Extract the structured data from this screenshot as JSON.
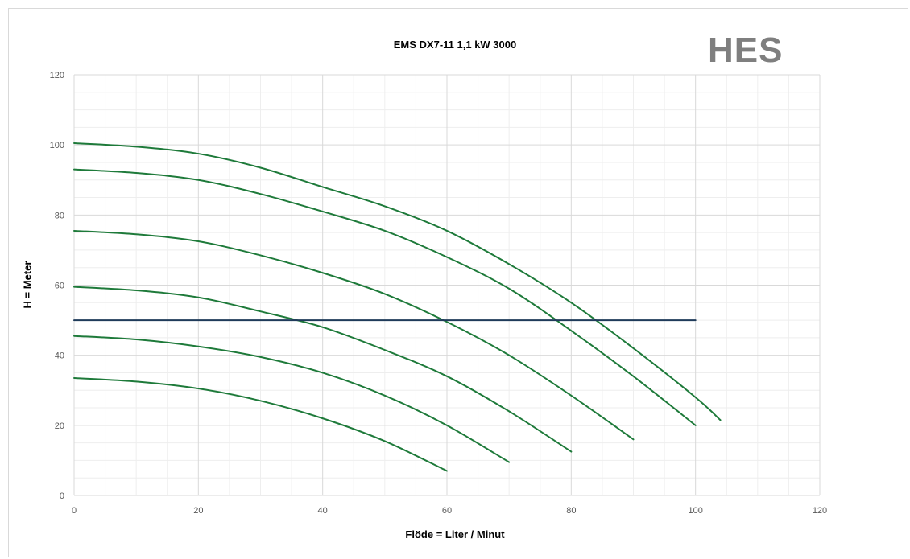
{
  "logo_text": "HES",
  "chart_data": {
    "type": "line",
    "title": "EMS DX7-11 1,1 kW 3000",
    "xlabel": "Flöde = Liter / Minut",
    "ylabel": "H = Meter",
    "xlim": [
      0,
      120
    ],
    "ylim": [
      0,
      120
    ],
    "xticks": [
      0,
      20,
      40,
      60,
      80,
      100,
      120
    ],
    "yticks": [
      0,
      20,
      40,
      60,
      80,
      100,
      120
    ],
    "grid": true,
    "colors": {
      "curve": "#1e7a3a",
      "reference": "#1f3b5a",
      "major_grid": "#d9d9d9",
      "minor_grid": "#eeeeee"
    },
    "series": [
      {
        "x": [
          0,
          10,
          20,
          30,
          40,
          50,
          60,
          70,
          80,
          90,
          100,
          104
        ],
        "y": [
          100.5,
          99.5,
          97.5,
          93.5,
          88,
          82.5,
          75.5,
          66,
          55,
          42,
          28,
          21.5
        ]
      },
      {
        "x": [
          0,
          10,
          20,
          30,
          40,
          50,
          60,
          70,
          80,
          90,
          100
        ],
        "y": [
          93,
          92,
          90,
          86,
          81,
          75.5,
          68,
          59,
          47,
          34,
          20
        ]
      },
      {
        "x": [
          0,
          10,
          20,
          30,
          40,
          50,
          60,
          70,
          80,
          90
        ],
        "y": [
          75.5,
          74.5,
          72.5,
          68.5,
          63.5,
          57.5,
          49.5,
          40,
          28.5,
          16
        ]
      },
      {
        "x": [
          0,
          10,
          20,
          30,
          40,
          50,
          60,
          70,
          80
        ],
        "y": [
          59.5,
          58.5,
          56.5,
          52.5,
          48,
          41.5,
          34,
          24,
          12.5
        ]
      },
      {
        "x": [
          0,
          10,
          20,
          30,
          40,
          50,
          60,
          70
        ],
        "y": [
          45.5,
          44.5,
          42.5,
          39.5,
          35,
          28.5,
          20,
          9.5
        ]
      },
      {
        "x": [
          0,
          10,
          20,
          30,
          40,
          50,
          60
        ],
        "y": [
          33.5,
          32.5,
          30.5,
          27,
          22,
          15.5,
          7
        ]
      },
      {
        "x": [
          0,
          100
        ],
        "y": [
          50,
          50
        ]
      }
    ]
  }
}
